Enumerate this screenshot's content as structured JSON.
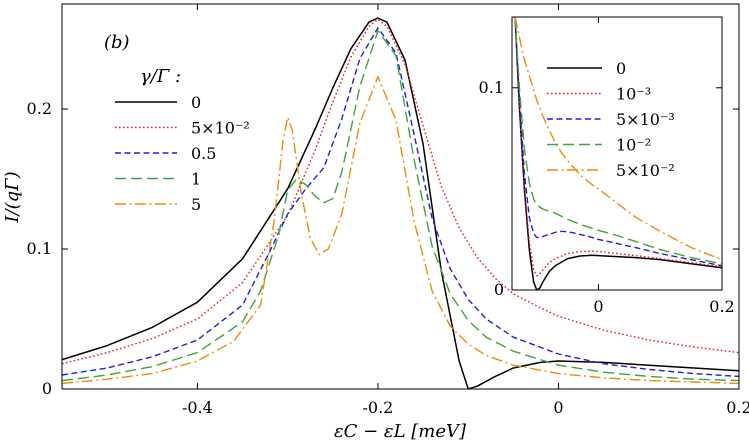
{
  "chart_data": [
    {
      "name": "main",
      "type": "line",
      "panel_label": "(b)",
      "xlabel": "εC − εL [meV]",
      "ylabel": "I/(qΓ)",
      "xlim": [
        -0.55,
        0.2
      ],
      "ylim": [
        0,
        0.275
      ],
      "xticks": [
        -0.4,
        -0.2,
        0,
        0.2
      ],
      "xtick_labels": [
        "-0.4",
        "-0.2",
        "0",
        "0.2"
      ],
      "yticks": [
        0,
        0.1,
        0.2
      ],
      "ytick_labels": [
        "0",
        "0.1",
        "0.2"
      ],
      "legend_title": "γ/Γ :",
      "legend_position": "left",
      "series": [
        {
          "name": "0",
          "style": "solid",
          "color": "#000000",
          "x": [
            -0.55,
            -0.5,
            -0.45,
            -0.4,
            -0.35,
            -0.3,
            -0.27,
            -0.25,
            -0.23,
            -0.21,
            -0.2,
            -0.19,
            -0.17,
            -0.15,
            -0.13,
            -0.11,
            -0.1,
            -0.09,
            -0.07,
            -0.05,
            -0.02,
            0,
            0.05,
            0.1,
            0.15,
            0.2
          ],
          "y": [
            0.021,
            0.031,
            0.044,
            0.062,
            0.093,
            0.143,
            0.185,
            0.215,
            0.243,
            0.262,
            0.265,
            0.262,
            0.235,
            0.175,
            0.085,
            0.02,
            0.0,
            0.002,
            0.009,
            0.015,
            0.019,
            0.02,
            0.019,
            0.017,
            0.015,
            0.013
          ]
        },
        {
          "name": "5×10⁻²",
          "style": "dotted",
          "color": "#e8191b",
          "x": [
            -0.55,
            -0.5,
            -0.45,
            -0.4,
            -0.35,
            -0.3,
            -0.27,
            -0.25,
            -0.23,
            -0.21,
            -0.2,
            -0.19,
            -0.17,
            -0.15,
            -0.13,
            -0.11,
            -0.09,
            -0.07,
            -0.05,
            -0.02,
            0,
            0.05,
            0.1,
            0.15,
            0.2
          ],
          "y": [
            0.018,
            0.026,
            0.036,
            0.05,
            0.076,
            0.124,
            0.17,
            0.205,
            0.237,
            0.259,
            0.264,
            0.259,
            0.232,
            0.188,
            0.145,
            0.115,
            0.094,
            0.079,
            0.068,
            0.058,
            0.052,
            0.042,
            0.035,
            0.03,
            0.026
          ]
        },
        {
          "name": "0.5",
          "style": "dashed",
          "color": "#1f1fd6",
          "x": [
            -0.55,
            -0.5,
            -0.45,
            -0.4,
            -0.35,
            -0.32,
            -0.3,
            -0.28,
            -0.26,
            -0.24,
            -0.22,
            -0.2,
            -0.18,
            -0.16,
            -0.14,
            -0.12,
            -0.1,
            -0.08,
            -0.05,
            0,
            0.05,
            0.1,
            0.15,
            0.2
          ],
          "y": [
            0.01,
            0.015,
            0.023,
            0.035,
            0.06,
            0.098,
            0.125,
            0.143,
            0.158,
            0.193,
            0.236,
            0.258,
            0.24,
            0.182,
            0.122,
            0.086,
            0.064,
            0.05,
            0.037,
            0.025,
            0.018,
            0.014,
            0.011,
            0.009
          ]
        },
        {
          "name": "1",
          "style": "longdash",
          "color": "#3aa639",
          "x": [
            -0.55,
            -0.5,
            -0.45,
            -0.4,
            -0.35,
            -0.33,
            -0.31,
            -0.3,
            -0.29,
            -0.28,
            -0.27,
            -0.26,
            -0.25,
            -0.24,
            -0.22,
            -0.2,
            -0.18,
            -0.16,
            -0.14,
            -0.12,
            -0.1,
            -0.08,
            -0.05,
            0,
            0.05,
            0.1,
            0.15,
            0.2
          ],
          "y": [
            0.006,
            0.01,
            0.016,
            0.026,
            0.048,
            0.07,
            0.11,
            0.142,
            0.15,
            0.146,
            0.138,
            0.133,
            0.136,
            0.155,
            0.216,
            0.256,
            0.238,
            0.164,
            0.102,
            0.068,
            0.049,
            0.037,
            0.027,
            0.017,
            0.012,
            0.009,
            0.007,
            0.006
          ]
        },
        {
          "name": "5",
          "style": "dashdot",
          "color": "#ee8b0c",
          "x": [
            -0.55,
            -0.5,
            -0.45,
            -0.4,
            -0.36,
            -0.33,
            -0.315,
            -0.305,
            -0.3,
            -0.295,
            -0.285,
            -0.275,
            -0.265,
            -0.255,
            -0.24,
            -0.22,
            -0.2,
            -0.18,
            -0.16,
            -0.14,
            -0.12,
            -0.1,
            -0.08,
            -0.05,
            0,
            0.05,
            0.1,
            0.15,
            0.2
          ],
          "y": [
            0.004,
            0.007,
            0.011,
            0.02,
            0.034,
            0.06,
            0.12,
            0.178,
            0.194,
            0.185,
            0.14,
            0.108,
            0.096,
            0.1,
            0.125,
            0.19,
            0.223,
            0.192,
            0.12,
            0.07,
            0.045,
            0.032,
            0.024,
            0.017,
            0.011,
            0.008,
            0.006,
            0.005,
            0.004
          ]
        }
      ]
    },
    {
      "name": "inset",
      "type": "line",
      "xlim": [
        -0.14,
        0.2
      ],
      "ylim": [
        0,
        0.135
      ],
      "xticks": [
        0,
        0.2
      ],
      "xtick_labels": [
        "0",
        "0.2"
      ],
      "yticks": [
        0,
        0.1
      ],
      "ytick_labels": [
        "0",
        "0.1"
      ],
      "legend_position": "top-right",
      "series": [
        {
          "name": "0",
          "style": "solid",
          "color": "#000000",
          "x": [
            -0.135,
            -0.128,
            -0.12,
            -0.112,
            -0.105,
            -0.1,
            -0.095,
            -0.09,
            -0.08,
            -0.07,
            -0.05,
            -0.03,
            -0.01,
            0,
            0.03,
            0.06,
            0.1,
            0.15,
            0.2
          ],
          "y": [
            0.135,
            0.09,
            0.05,
            0.02,
            0.004,
            0.0,
            0.001,
            0.004,
            0.009,
            0.012,
            0.0155,
            0.0168,
            0.0172,
            0.017,
            0.0165,
            0.016,
            0.015,
            0.013,
            0.011
          ]
        },
        {
          "name": "10⁻³",
          "style": "dotted",
          "color": "#e8191b",
          "x": [
            -0.135,
            -0.128,
            -0.12,
            -0.112,
            -0.105,
            -0.1,
            -0.095,
            -0.09,
            -0.08,
            -0.07,
            -0.05,
            -0.03,
            -0.01,
            0,
            0.03,
            0.06,
            0.1,
            0.15,
            0.2
          ],
          "y": [
            0.135,
            0.09,
            0.052,
            0.024,
            0.01,
            0.007,
            0.008,
            0.01,
            0.0135,
            0.0155,
            0.018,
            0.019,
            0.0192,
            0.019,
            0.018,
            0.017,
            0.0155,
            0.0135,
            0.0115
          ]
        },
        {
          "name": "5×10⁻³",
          "style": "dashed",
          "color": "#1f1fd6",
          "x": [
            -0.135,
            -0.128,
            -0.12,
            -0.112,
            -0.105,
            -0.1,
            -0.095,
            -0.09,
            -0.08,
            -0.07,
            -0.06,
            -0.05,
            -0.04,
            -0.03,
            -0.01,
            0,
            0.03,
            0.06,
            0.1,
            0.15,
            0.2
          ],
          "y": [
            0.135,
            0.095,
            0.058,
            0.036,
            0.028,
            0.026,
            0.026,
            0.0265,
            0.0275,
            0.0285,
            0.029,
            0.0288,
            0.0282,
            0.0275,
            0.026,
            0.025,
            0.023,
            0.021,
            0.018,
            0.015,
            0.012
          ]
        },
        {
          "name": "10⁻²",
          "style": "longdash",
          "color": "#3aa639",
          "x": [
            -0.135,
            -0.128,
            -0.12,
            -0.112,
            -0.105,
            -0.1,
            -0.09,
            -0.08,
            -0.07,
            -0.06,
            -0.05,
            -0.03,
            -0.01,
            0,
            0.03,
            0.06,
            0.1,
            0.15,
            0.2
          ],
          "y": [
            0.135,
            0.1,
            0.07,
            0.053,
            0.045,
            0.042,
            0.04,
            0.039,
            0.038,
            0.0365,
            0.035,
            0.0325,
            0.0305,
            0.0295,
            0.027,
            0.024,
            0.02,
            0.016,
            0.013
          ]
        },
        {
          "name": "5×10⁻²",
          "style": "dashdot",
          "color": "#ee8b0c",
          "x": [
            -0.135,
            -0.128,
            -0.12,
            -0.11,
            -0.1,
            -0.09,
            -0.08,
            -0.07,
            -0.06,
            -0.05,
            -0.03,
            -0.01,
            0,
            0.03,
            0.06,
            0.1,
            0.15,
            0.2
          ],
          "y": [
            0.135,
            0.125,
            0.114,
            0.104,
            0.094,
            0.086,
            0.079,
            0.073,
            0.068,
            0.064,
            0.057,
            0.052,
            0.05,
            0.043,
            0.036,
            0.029,
            0.021,
            0.015
          ]
        }
      ]
    }
  ]
}
